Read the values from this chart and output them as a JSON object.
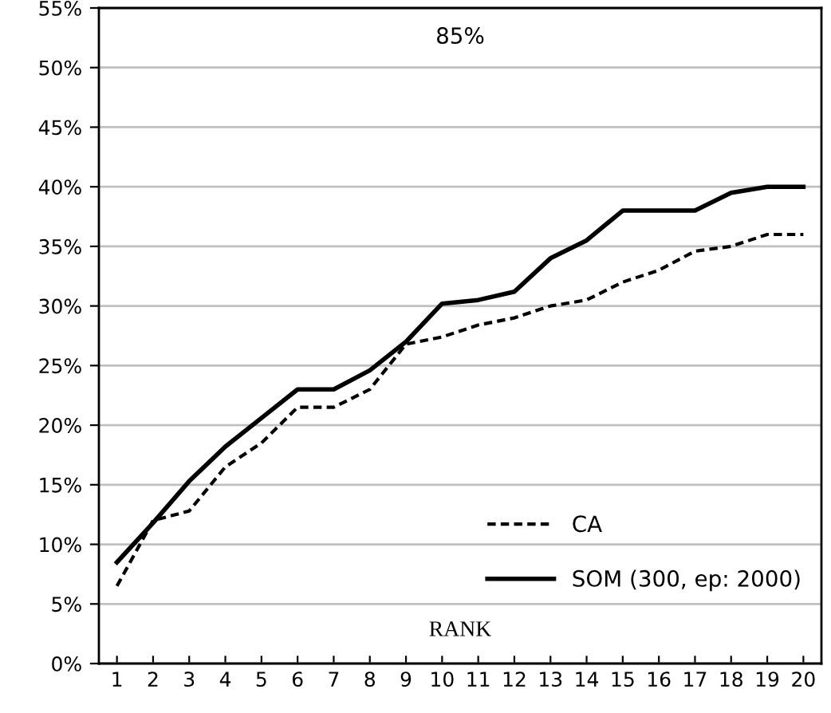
{
  "chart_data": {
    "type": "line",
    "categories": [
      "1",
      "2",
      "3",
      "4",
      "5",
      "6",
      "7",
      "8",
      "9",
      "10",
      "11",
      "12",
      "13",
      "14",
      "15",
      "16",
      "17",
      "18",
      "19",
      "20"
    ],
    "series": [
      {
        "name": "CA",
        "color": "#000000",
        "line_style": "dashed",
        "values": [
          6.5,
          12.0,
          12.8,
          16.5,
          18.5,
          21.5,
          21.5,
          23.0,
          26.8,
          27.4,
          28.4,
          29.0,
          30.0,
          30.5,
          32.0,
          33.0,
          34.6,
          35.0,
          36.0,
          36.0
        ]
      },
      {
        "name": "SOM (300, ep: 2000)",
        "color": "#000000",
        "line_style": "solid",
        "values": [
          8.5,
          11.8,
          15.3,
          18.2,
          20.6,
          23.0,
          23.0,
          24.6,
          27.0,
          30.2,
          30.5,
          31.2,
          34.0,
          35.5,
          38.0,
          38.0,
          38.0,
          39.5,
          40.0,
          40.0
        ]
      }
    ],
    "ylim": [
      0,
      55
    ],
    "yticks": [
      {
        "value": 0,
        "label": "0%"
      },
      {
        "value": 5,
        "label": "5%"
      },
      {
        "value": 10,
        "label": "10%"
      },
      {
        "value": 15,
        "label": "15%"
      },
      {
        "value": 20,
        "label": "20%"
      },
      {
        "value": 25,
        "label": "25%"
      },
      {
        "value": 30,
        "label": "30%"
      },
      {
        "value": 35,
        "label": "35%"
      },
      {
        "value": 40,
        "label": "40%"
      },
      {
        "value": 45,
        "label": "45%"
      },
      {
        "value": 50,
        "label": "50%"
      },
      {
        "value": 55,
        "label": "55%"
      }
    ],
    "annotations": [
      "85%",
      "RANK"
    ],
    "grid": "y",
    "legend": "bottom right",
    "marker": "none"
  }
}
